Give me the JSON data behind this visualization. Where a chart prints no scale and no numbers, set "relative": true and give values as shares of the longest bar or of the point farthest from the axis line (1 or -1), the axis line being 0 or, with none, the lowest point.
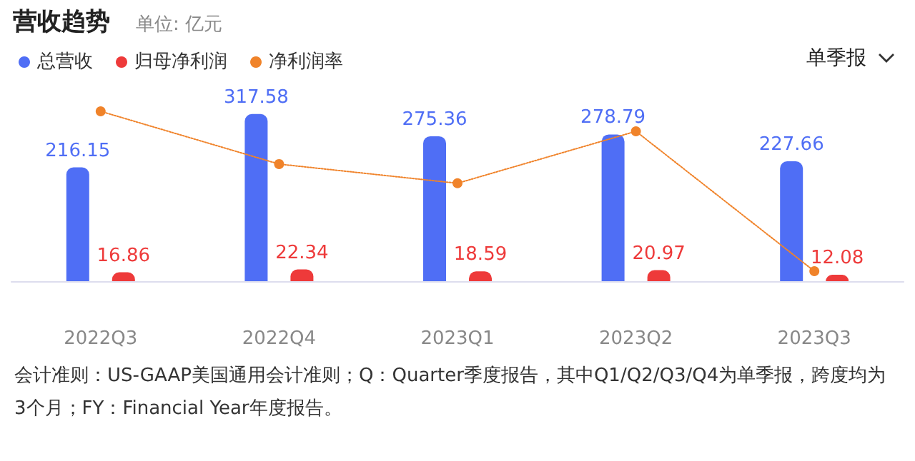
{
  "chart_data": [
    {
      "type": "bar",
      "title": "营收趋势",
      "subtitle": "单位: 亿元",
      "categories": [
        "2022Q3",
        "2022Q4",
        "2023Q1",
        "2023Q2",
        "2023Q3"
      ],
      "series": [
        {
          "name": "总营收",
          "color": "#4f6ef5",
          "values": [
            216.15,
            317.58,
            275.36,
            278.79,
            227.66
          ]
        },
        {
          "name": "归母净利润",
          "color": "#ee3a3a",
          "values": [
            16.86,
            22.34,
            18.59,
            20.97,
            12.08
          ]
        }
      ],
      "data_labels": true,
      "legend": "top left",
      "grid": false,
      "annotations": [
        "单季报",
        "会计准则：US-GAAP美国通用会计准则；Q：Quarter季度报告，其中Q1/Q2/Q3/Q4为单季报，跨度均为3个月；FY：Financial Year年度报告。"
      ]
    },
    {
      "type": "line",
      "categories": [
        null,
        null,
        null,
        null,
        null
      ],
      "series": [
        {
          "name": "净利润率",
          "color": "#f0832a",
          "values": [
            1,
            0.67,
            0.55,
            0.875,
            0
          ]
        }
      ],
      "relative": true,
      "marker": "circle",
      "line_style": "dotted",
      "legend": "top left",
      "grid": false
    }
  ]
}
